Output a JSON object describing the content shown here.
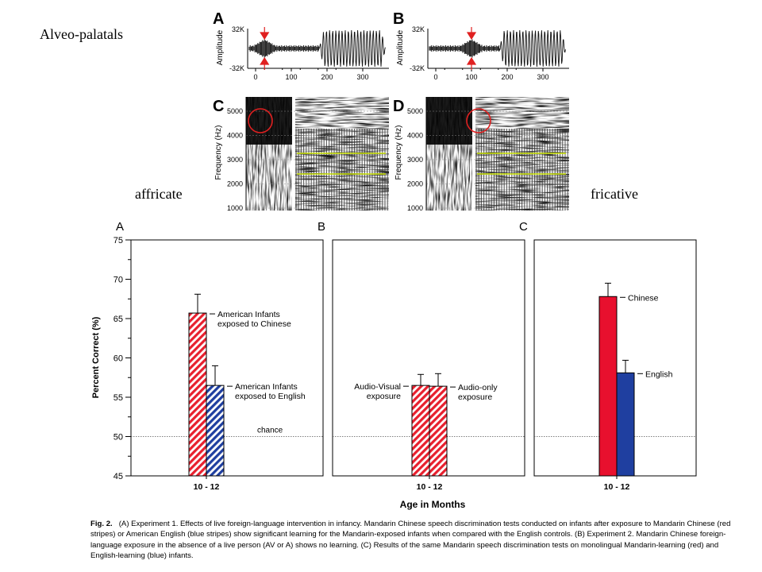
{
  "slide": {
    "title": "Alveo-palatals",
    "left_label": "affricate",
    "right_label": "fricative"
  },
  "top_figure": {
    "waveform_panels": [
      {
        "letter": "A",
        "ylabel": "Amplitude",
        "yticks": [
          "32K",
          "-32K"
        ],
        "xticks": [
          "0",
          "100",
          "200",
          "300"
        ],
        "burst_ms": 25
      },
      {
        "letter": "B",
        "ylabel": "Amplitude",
        "yticks": [
          "32K",
          "-32K"
        ],
        "xticks": [
          "0",
          "100",
          "200",
          "300"
        ],
        "burst_ms": 100
      }
    ],
    "spectrogram_panels": [
      {
        "letter": "C",
        "ylabel": "Frequency (Hz)",
        "yticks": [
          "5000",
          "4000",
          "3000",
          "2000",
          "1000"
        ]
      },
      {
        "letter": "D",
        "ylabel": "Frequency (Hz)",
        "yticks": [
          "5000",
          "4000",
          "3000",
          "2000",
          "1000"
        ]
      }
    ],
    "colors": {
      "marker": "#e02020",
      "formant": "#c8e000",
      "waveform": "#111111"
    }
  },
  "chart_data": {
    "type": "bar",
    "ylabel": "Percent Correct (%)",
    "xlabel": "Age in Months",
    "ylim": [
      45,
      75
    ],
    "yticks": [
      45,
      50,
      55,
      60,
      65,
      70,
      75
    ],
    "chance_level": 50,
    "panels": [
      {
        "letter": "A",
        "category": "10 - 12",
        "chance_label": "chance",
        "bars": [
          {
            "label_lines": [
              "American Infants",
              "exposed to Chinese"
            ],
            "value": 65.7,
            "error": 2.4,
            "color": "#e8202e",
            "style": "striped"
          },
          {
            "label_lines": [
              "American Infants",
              "exposed to English"
            ],
            "value": 56.5,
            "error": 2.5,
            "color": "#1f3fa0",
            "style": "striped"
          }
        ]
      },
      {
        "letter": "B",
        "category": "10 - 12",
        "bars": [
          {
            "label_lines": [
              "Audio-Visual",
              "exposure"
            ],
            "value": 56.5,
            "error": 1.4,
            "color": "#e8202e",
            "style": "striped"
          },
          {
            "label_lines": [
              "Audio-only",
              "exposure"
            ],
            "value": 56.4,
            "error": 1.6,
            "color": "#e8202e",
            "style": "striped"
          }
        ]
      },
      {
        "letter": "C",
        "category": "10 - 12",
        "bars": [
          {
            "label_lines": [
              "Chinese"
            ],
            "value": 67.8,
            "error": 1.7,
            "color": "#e8102e",
            "style": "solid"
          },
          {
            "label_lines": [
              "English"
            ],
            "value": 58.1,
            "error": 1.6,
            "color": "#1f3fa0",
            "style": "solid"
          }
        ]
      }
    ]
  },
  "caption": {
    "fig_label": "Fig. 2.",
    "text": "(A) Experiment 1. Effects of live foreign-language intervention in infancy. Mandarin Chinese speech discrimination tests conducted on infants after exposure to Mandarin Chinese (red stripes) or American English (blue stripes) show significant learning for the Mandarin-exposed infants when compared with the English controls. (B) Experiment 2. Mandarin Chinese foreign-language exposure in the absence of a live person (AV or A) shows no learning. (C) Results of the same Mandarin speech discrimination tests on monolingual Mandarin-learning (red) and English-learning (blue) infants."
  }
}
